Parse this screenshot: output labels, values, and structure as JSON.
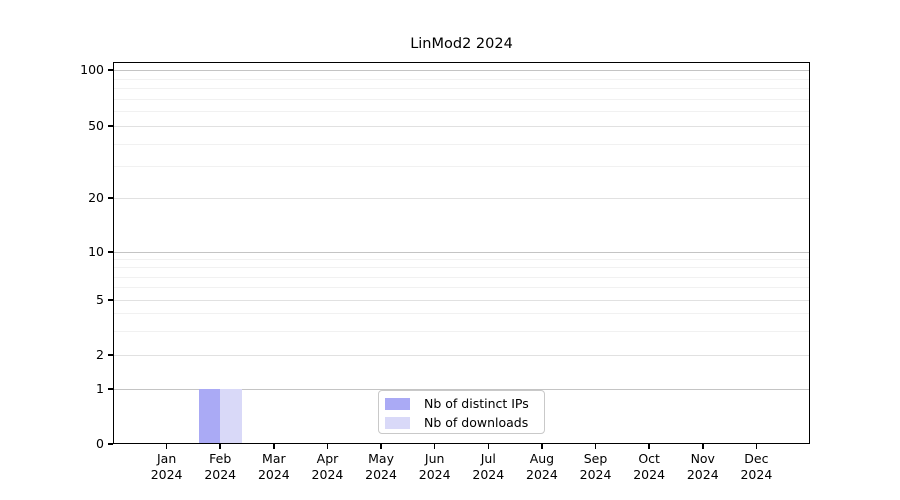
{
  "chart_data": {
    "type": "bar",
    "title": "LinMod2 2024",
    "categories": [
      {
        "month": "Jan",
        "year": "2024"
      },
      {
        "month": "Feb",
        "year": "2024"
      },
      {
        "month": "Mar",
        "year": "2024"
      },
      {
        "month": "Apr",
        "year": "2024"
      },
      {
        "month": "May",
        "year": "2024"
      },
      {
        "month": "Jun",
        "year": "2024"
      },
      {
        "month": "Jul",
        "year": "2024"
      },
      {
        "month": "Aug",
        "year": "2024"
      },
      {
        "month": "Sep",
        "year": "2024"
      },
      {
        "month": "Oct",
        "year": "2024"
      },
      {
        "month": "Nov",
        "year": "2024"
      },
      {
        "month": "Dec",
        "year": "2024"
      }
    ],
    "series": [
      {
        "name": "Nb of distinct IPs",
        "color": "#aaaaf5",
        "values": [
          0,
          1,
          0,
          0,
          0,
          0,
          0,
          0,
          0,
          0,
          0,
          0
        ]
      },
      {
        "name": "Nb of downloads",
        "color": "#d9d9f8",
        "values": [
          0,
          1,
          0,
          0,
          0,
          0,
          0,
          0,
          0,
          0,
          0,
          0
        ]
      }
    ],
    "y_axis": {
      "scale": "log above 1, linear 0-1",
      "major_ticks": [
        100,
        50,
        20,
        10,
        5,
        2,
        1,
        0
      ],
      "minor_ticks": [
        90,
        80,
        70,
        60,
        40,
        30,
        9,
        8,
        7,
        6,
        4,
        3
      ],
      "range": [
        0,
        110
      ]
    },
    "x_axis": {
      "label_lines": 2
    },
    "grid": true,
    "legend_position": "bottom-center",
    "background_color": "#ffffff"
  }
}
